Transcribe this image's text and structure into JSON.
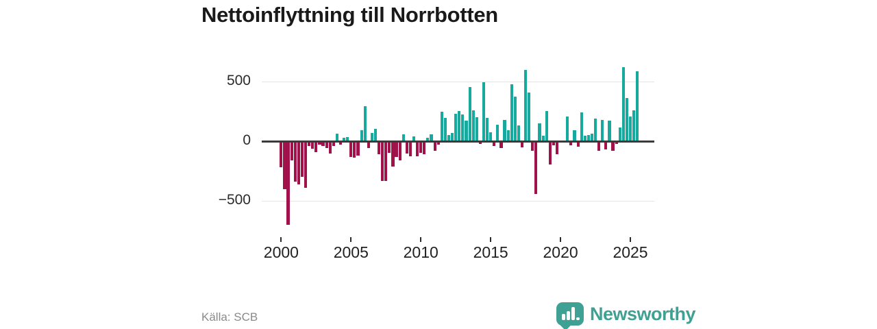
{
  "title": "Nettoinflyttning till Norrbotten",
  "source": "Källa: SCB",
  "branding": {
    "name": "Newsworthy",
    "color": "#3fa193"
  },
  "colors": {
    "positive_bar": "#17a89e",
    "negative_bar": "#a1124a",
    "zero_axis": "#3a3a3a",
    "gridline": "#e4e4e4",
    "title_text": "#1a1a1a",
    "tick_text": "#222222",
    "source_text": "#8a8a8a"
  },
  "chart_data": {
    "type": "bar",
    "title": "Nettoinflyttning till Norrbotten",
    "frequency": "quarterly",
    "x_start": "2000Q1",
    "x_end": "2025Q3",
    "xlabel": "",
    "ylabel": "",
    "ylim": [
      -750,
      660
    ],
    "grid": "horizontal gridlines at 500 and -500, dark zero axis",
    "legend": "none",
    "x_tick_labels": [
      "2000",
      "2005",
      "2010",
      "2015",
      "2020",
      "2025"
    ],
    "y_ticks": [
      {
        "label": "500",
        "value": 500
      },
      {
        "label": "0",
        "value": 0
      },
      {
        "label": "−500",
        "value": -500
      }
    ],
    "series_note": "net migration per quarter; teal = positive, crimson = negative",
    "values": [
      -220,
      -400,
      -700,
      -160,
      -340,
      -360,
      -300,
      -390,
      -38,
      -65,
      -90,
      -27,
      -42,
      -57,
      -103,
      -38,
      63,
      -27,
      27,
      34,
      -134,
      -140,
      -120,
      94,
      295,
      -60,
      69,
      105,
      -111,
      -332,
      -335,
      -98,
      -213,
      -130,
      -159,
      56,
      -102,
      -125,
      42,
      -125,
      -100,
      -109,
      31,
      57,
      -80,
      -28,
      245,
      197,
      54,
      67,
      230,
      255,
      222,
      174,
      452,
      259,
      201,
      -23,
      494,
      194,
      73,
      -42,
      136,
      -56,
      180,
      92,
      475,
      374,
      130,
      -52,
      600,
      408,
      -80,
      -445,
      150,
      44,
      255,
      -196,
      -33,
      -110,
      -13,
      -13,
      207,
      -36,
      92,
      -46,
      241,
      44,
      50,
      63,
      191,
      -80,
      178,
      -71,
      174,
      -80,
      -25,
      117,
      620,
      360,
      207,
      259,
      585
    ]
  }
}
